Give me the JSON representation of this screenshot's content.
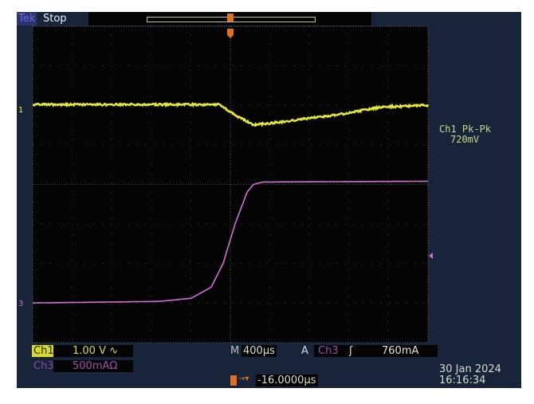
{
  "status": {
    "brand": "Tek",
    "state": "Stop"
  },
  "measurement": {
    "label": "Ch1 Pk-Pk",
    "value": "720mV"
  },
  "ch1": {
    "label": "Ch1",
    "scale": "1.00 V",
    "coupling_icon": "ac-coupling-icon",
    "color": "#e8e83a",
    "marker": "1"
  },
  "ch3": {
    "label": "Ch3",
    "scale": "500mA",
    "termination": "Ω",
    "color": "#d070d8",
    "marker": "3"
  },
  "timebase": {
    "label": "M",
    "value": "400µs"
  },
  "trigger": {
    "label": "A",
    "source": "Ch3",
    "slope_icon": "rising-edge-icon",
    "level": "760mA",
    "position": "-16.0000µs",
    "marker": "T"
  },
  "datetime": {
    "date": "30 Jan  2024",
    "time": "16:16:34"
  },
  "chart_data": {
    "type": "line",
    "xlabel": "",
    "ylabel": "",
    "x_units": "µs",
    "x_per_div": 400,
    "xlim": [
      -2000,
      2000
    ],
    "grid": true,
    "series": [
      {
        "name": "Ch1",
        "units": "V",
        "per_div": 1.0,
        "x": [
          -2000,
          -113,
          89,
          234,
          573,
          1056,
          1540,
          2000
        ],
        "y": [
          0.12,
          0.12,
          -0.2,
          -0.4,
          -0.3,
          -0.15,
          0.06,
          0.1
        ]
      },
      {
        "name": "Ch3",
        "units": "mA",
        "per_div": 500,
        "x": [
          -2000,
          -718,
          -395,
          -194,
          -73,
          48,
          169,
          234,
          331,
          2000
        ],
        "y": [
          0,
          20,
          60,
          200,
          500,
          1000,
          1400,
          1500,
          1530,
          1540
        ]
      }
    ]
  }
}
